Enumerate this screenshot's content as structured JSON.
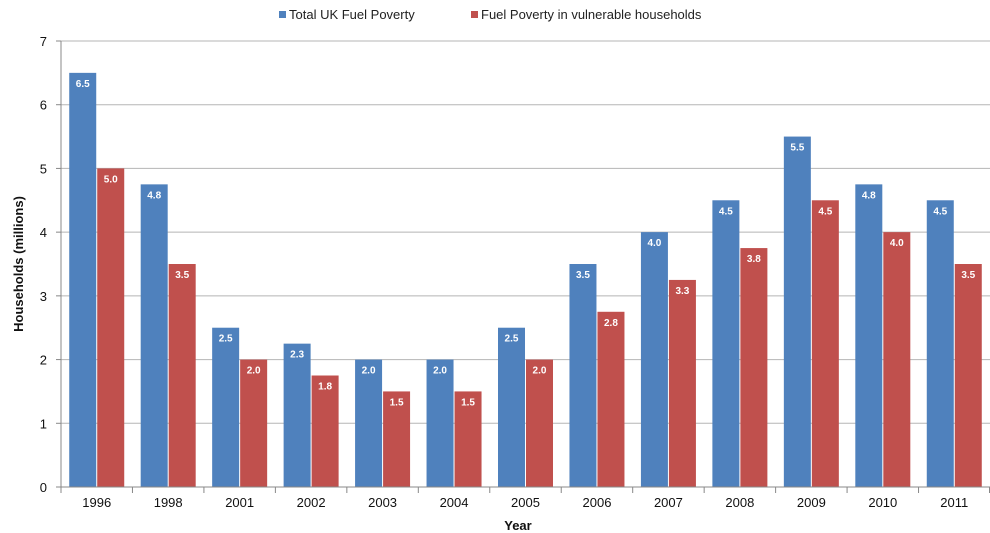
{
  "chart_data": {
    "type": "bar",
    "categories": [
      "1996",
      "1998",
      "2001",
      "2002",
      "2003",
      "2004",
      "2005",
      "2006",
      "2007",
      "2008",
      "2009",
      "2010",
      "2011"
    ],
    "series": [
      {
        "name": "Total UK Fuel Poverty",
        "color": "#4F81BD",
        "values": [
          6.5,
          4.75,
          2.5,
          2.25,
          2.0,
          2.0,
          2.5,
          3.5,
          4.0,
          4.5,
          5.5,
          4.75,
          4.5
        ],
        "labels": [
          "6.5",
          "4.8",
          "2.5",
          "2.3",
          "2.0",
          "2.0",
          "2.5",
          "3.5",
          "4.0",
          "4.5",
          "5.5",
          "4.8",
          "4.5"
        ]
      },
      {
        "name": "Fuel Poverty in vulnerable households",
        "color": "#C0504D",
        "values": [
          5.0,
          3.5,
          2.0,
          1.75,
          1.5,
          1.5,
          2.0,
          2.75,
          3.25,
          3.75,
          4.5,
          4.0,
          3.5
        ],
        "labels": [
          "5.0",
          "3.5",
          "2.0",
          "1.8",
          "1.5",
          "1.5",
          "2.0",
          "2.8",
          "3.3",
          "3.8",
          "4.5",
          "4.0",
          "3.5"
        ]
      }
    ],
    "xlabel": "Year",
    "ylabel": "Households (millions)",
    "ylim": [
      0,
      7
    ],
    "yticks": [
      "0",
      "1",
      "2",
      "3",
      "4",
      "5",
      "6",
      "7"
    ],
    "grid": true,
    "legend_position": "top"
  }
}
